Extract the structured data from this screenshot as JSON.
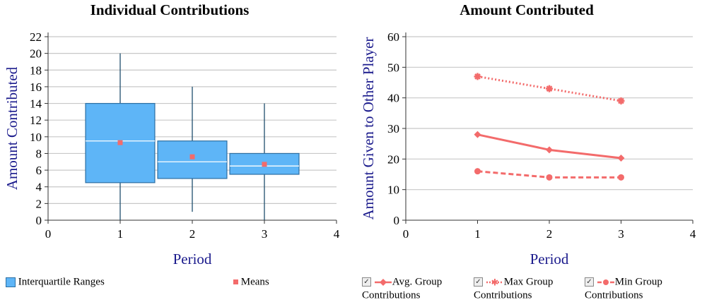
{
  "chart_data": [
    {
      "type": "boxplot",
      "title": "Individual Contributions",
      "xlabel": "Period",
      "ylabel": "Amount Contributed",
      "xlim": [
        0,
        4
      ],
      "ylim": [
        0,
        22
      ],
      "xticks": [
        "0",
        "1",
        "2",
        "3",
        "4"
      ],
      "yticks": [
        "0",
        "2",
        "4",
        "6",
        "8",
        "10",
        "12",
        "14",
        "16",
        "18",
        "20",
        "22"
      ],
      "grid": true,
      "legend_position": "bottom",
      "legend": [
        "Interquartile Ranges",
        "Means"
      ],
      "boxes": [
        {
          "x": 1,
          "min": 0,
          "q1": 4.5,
          "median": 9.5,
          "q3": 14,
          "max": 20,
          "mean": 9.3
        },
        {
          "x": 2,
          "min": 1,
          "q1": 5,
          "median": 7,
          "q3": 9.5,
          "max": 16,
          "mean": 7.6
        },
        {
          "x": 3,
          "min": 0,
          "q1": 5.5,
          "median": 6.5,
          "q3": 8,
          "max": 14,
          "mean": 6.7
        }
      ],
      "colors": {
        "box_fill": "#5eb5f7",
        "box_stroke": "#2d6fa3",
        "mean": "#f36b6b"
      }
    },
    {
      "type": "line",
      "title": "Amount Contributed",
      "xlabel": "Period",
      "ylabel": "Amount Given to Other Player",
      "xlim": [
        0,
        4
      ],
      "ylim": [
        0,
        60
      ],
      "xticks": [
        "0",
        "1",
        "2",
        "3",
        "4"
      ],
      "yticks": [
        "0",
        "10",
        "20",
        "30",
        "40",
        "50",
        "60"
      ],
      "grid": true,
      "legend_position": "bottom",
      "x": [
        1,
        2,
        3
      ],
      "series": [
        {
          "name": "Avg. Group Contributions",
          "values": [
            28,
            23,
            20.3
          ],
          "style": "solid",
          "marker": "diamond"
        },
        {
          "name": "Max Group Contributions",
          "values": [
            47,
            43,
            39
          ],
          "style": "dotted",
          "marker": "star"
        },
        {
          "name": "Min Group Contributions",
          "values": [
            16,
            14,
            14
          ],
          "style": "dashed",
          "marker": "circle"
        }
      ],
      "colors": {
        "line": "#f36b6b"
      }
    }
  ],
  "legend_left": {
    "iqr_label": "Interquartile Ranges",
    "means_label": "Means"
  },
  "legend_right": {
    "avg_line1": "Avg. Group",
    "avg_line2": "Contributions",
    "max_line1": "Max Group",
    "max_line2": "Contributions",
    "min_line1": "Min Group",
    "min_line2": "Contributions",
    "check_glyph": "✓"
  },
  "colors": {
    "axis_label": "#1a1a8c",
    "grid": "#c8c8c8"
  }
}
